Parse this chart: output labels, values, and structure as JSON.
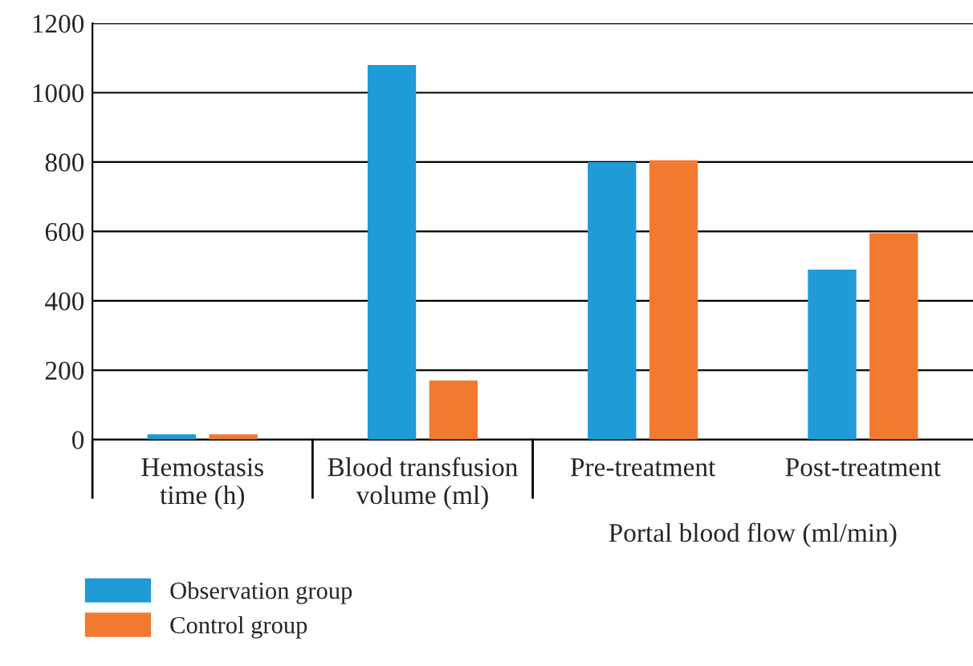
{
  "chart_data": {
    "type": "bar",
    "categories": [
      "Hemostasis\ntime (h)",
      "Blood transfusion\nvolume (ml)",
      "Pre-treatment",
      "Post-treatment"
    ],
    "series": [
      {
        "name": "Observation group",
        "color": "#1f9bd7",
        "values": [
          15,
          1080,
          800,
          490
        ]
      },
      {
        "name": "Control group",
        "color": "#f27a2f",
        "values": [
          15,
          170,
          805,
          595
        ]
      }
    ],
    "ylim": [
      0,
      1200
    ],
    "yticks": [
      0,
      200,
      400,
      600,
      800,
      1000,
      1200
    ],
    "grid": "y",
    "legend": "bottom left",
    "annotations": [
      "Portal blood flow (ml/min)"
    ]
  }
}
